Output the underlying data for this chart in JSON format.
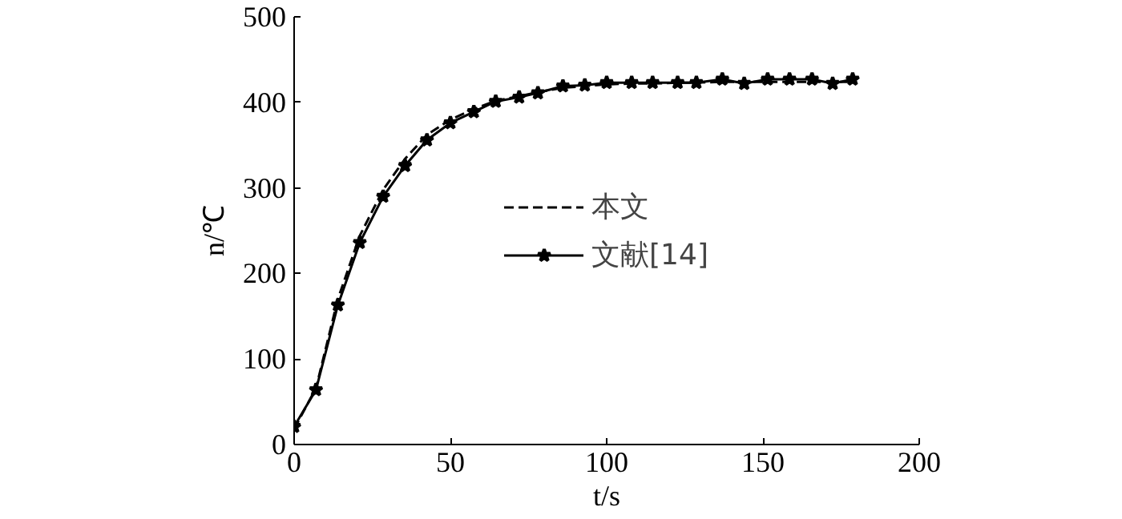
{
  "chart_data": {
    "type": "line",
    "xlabel": "t/s",
    "ylabel": "n/℃",
    "xlim": [
      0,
      200
    ],
    "xticks": [
      0,
      50,
      100,
      150,
      200
    ],
    "ylim": [
      0,
      500
    ],
    "yticks": [
      0,
      100,
      200,
      300,
      400,
      500
    ],
    "grid": false,
    "legend": "center",
    "series": [
      {
        "name": "本文",
        "color": "#000000",
        "line_style": "dashed",
        "marker": "none",
        "x": [
          0,
          7,
          14,
          21,
          28.5,
          35.5,
          42.5,
          50,
          57.5,
          64.5,
          72,
          78,
          86,
          93,
          100,
          108,
          114.7,
          122.7,
          128.7,
          137,
          144,
          151.5,
          158.5,
          165.7,
          172.3,
          178.7
        ],
        "values": [
          18,
          66,
          170,
          244,
          298,
          334,
          362,
          380,
          392,
          402,
          407,
          412,
          417,
          419,
          421,
          422,
          422,
          423,
          423,
          424,
          424,
          424,
          424,
          424,
          424,
          424
        ]
      },
      {
        "name": "文献[14]",
        "color": "#000000",
        "line_style": "solid",
        "marker": "star",
        "x": [
          0,
          7,
          14,
          21,
          28.5,
          35.5,
          42.5,
          50,
          57.5,
          64.5,
          72,
          78,
          86,
          93,
          100,
          108,
          114.7,
          122.7,
          128.7,
          137,
          144,
          151.5,
          158.5,
          165.7,
          172.3,
          178.7
        ],
        "values": [
          21,
          64,
          163,
          236,
          290,
          326,
          356,
          376,
          389,
          401,
          406,
          411,
          419,
          420,
          423,
          423,
          423,
          423,
          423,
          427,
          422,
          427,
          427,
          427,
          422,
          427
        ]
      }
    ]
  }
}
